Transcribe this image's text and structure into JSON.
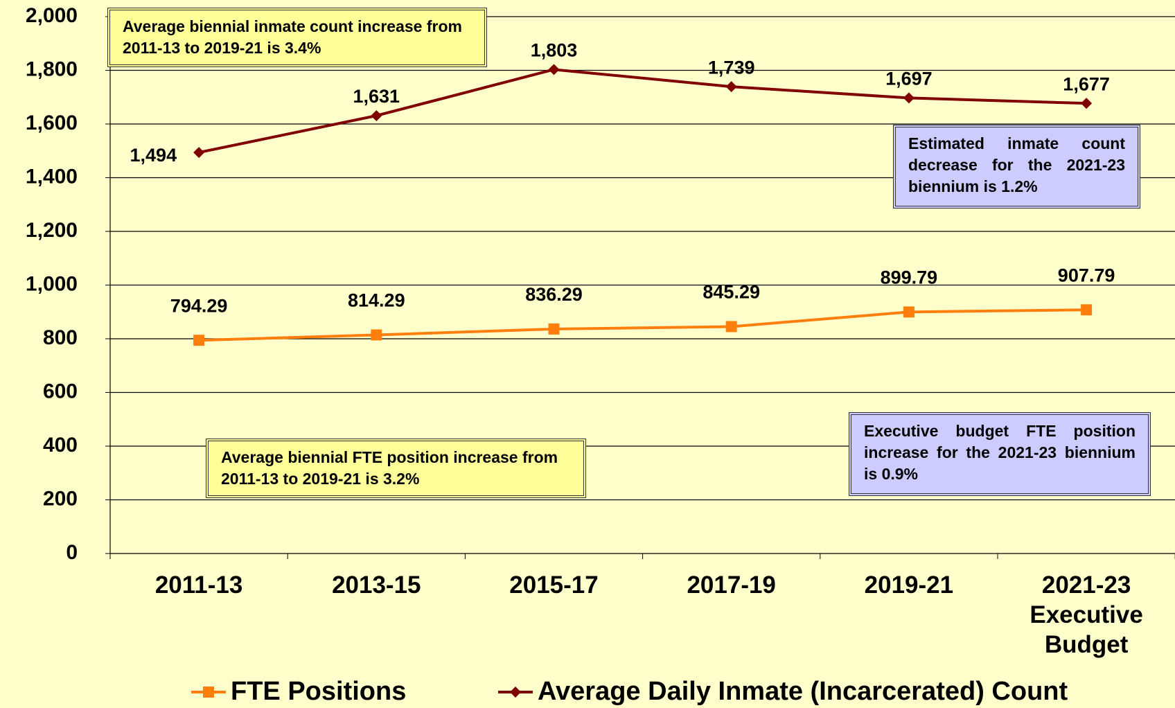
{
  "chart_data": {
    "type": "line",
    "categories": [
      "2011-13",
      "2013-15",
      "2015-17",
      "2017-19",
      "2019-21",
      "2021-23 Executive Budget"
    ],
    "series": [
      {
        "name": "FTE Positions",
        "color": "#ff7f0e",
        "marker": "square",
        "values": [
          794.29,
          814.29,
          836.29,
          845.29,
          899.79,
          907.79
        ]
      },
      {
        "name": "Average Daily Inmate (Incarcerated) Count",
        "color": "#800000",
        "marker": "diamond",
        "values": [
          1494,
          1631,
          1803,
          1739,
          1697,
          1677
        ],
        "value_labels": [
          "1,494",
          "1,631",
          "1,803",
          "1,739",
          "1,697",
          "1,677"
        ]
      }
    ],
    "ylim": [
      0,
      2000
    ],
    "yticks": [
      0,
      200,
      400,
      600,
      800,
      {
        "value": 1000,
        "label": "1,000"
      },
      {
        "value": 1200,
        "label": "1,200"
      },
      {
        "value": 1400,
        "label": "1,400"
      },
      {
        "value": 1600,
        "label": "1,600"
      },
      {
        "value": 1800,
        "label": "1,800"
      },
      {
        "value": 2000,
        "label": "2,000"
      }
    ],
    "grid": true,
    "legend": "bottom",
    "annotations": [
      "Average biennial inmate count increase from 2011-13 to 2019-21 is 3.4%",
      "Estimated inmate count decrease for the 2021-23 biennium is 1.2%",
      "Average biennial FTE position increase from 2011-13 to 2019-21 is 3.2%",
      "Executive budget FTE position increase for the 2021-23 biennium is 0.9%"
    ]
  }
}
